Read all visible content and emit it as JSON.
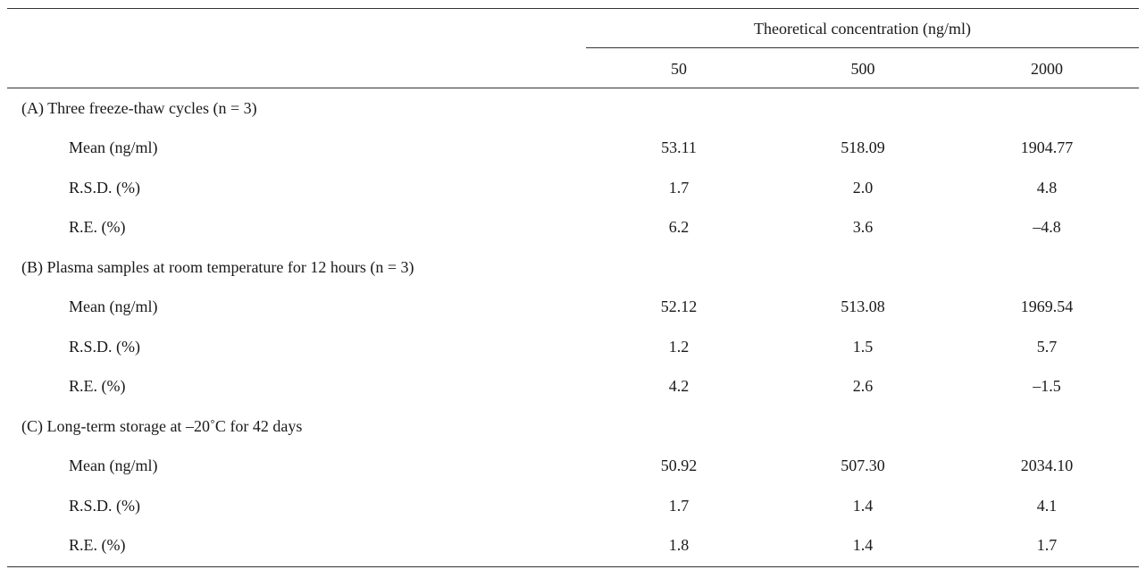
{
  "table": {
    "span_header": "Theoretical concentration (ng/ml)",
    "columns": [
      "50",
      "500",
      "2000"
    ],
    "sections": [
      {
        "label": "(A) Three freeze-thaw cycles (n = 3)",
        "rows": [
          {
            "label": "Mean (ng/ml)",
            "values": [
              "53.11",
              "518.09",
              "1904.77"
            ]
          },
          {
            "label": "R.S.D. (%)",
            "values": [
              "1.7",
              "2.0",
              "4.8"
            ]
          },
          {
            "label": "R.E. (%)",
            "values": [
              "6.2",
              "3.6",
              "–4.8"
            ]
          }
        ]
      },
      {
        "label": "(B) Plasma samples at room temperature for 12 hours (n = 3)",
        "rows": [
          {
            "label": "Mean (ng/ml)",
            "values": [
              "52.12",
              "513.08",
              "1969.54"
            ]
          },
          {
            "label": "R.S.D. (%)",
            "values": [
              "1.2",
              "1.5",
              "5.7"
            ]
          },
          {
            "label": "R.E. (%)",
            "values": [
              "4.2",
              "2.6",
              "–1.5"
            ]
          }
        ]
      },
      {
        "label": "(C) Long-term storage at –20˚C for 42 days",
        "rows": [
          {
            "label": "Mean (ng/ml)",
            "values": [
              "50.92",
              "507.30",
              "2034.10"
            ]
          },
          {
            "label": "R.S.D. (%)",
            "values": [
              "1.7",
              "1.4",
              "4.1"
            ]
          },
          {
            "label": "R.E. (%)",
            "values": [
              "1.8",
              "1.4",
              "1.7"
            ]
          }
        ]
      }
    ]
  }
}
